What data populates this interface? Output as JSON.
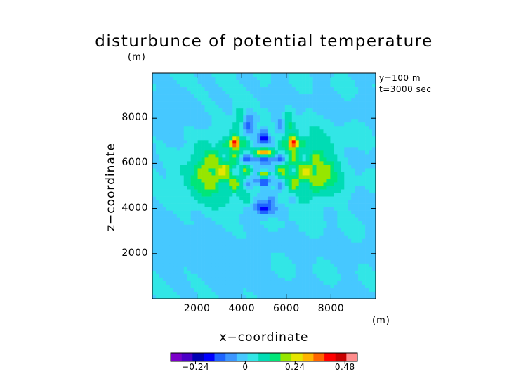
{
  "chart_data": {
    "type": "heatmap",
    "title": "disturbunce of potential temperature",
    "xlabel": "x−coordinate",
    "ylabel": "z−coordinate",
    "x_unit": "(m)",
    "z_unit": "(m)",
    "annotations": [
      "y=100  m",
      "t=3000 sec"
    ],
    "xlim": [
      0,
      10000
    ],
    "ylim": [
      0,
      10000
    ],
    "xticks": [
      "2000",
      "4000",
      "6000",
      "8000"
    ],
    "yticks": [
      "2000",
      "4000",
      "6000",
      "8000"
    ],
    "colorbar": {
      "range": [
        -0.36,
        0.54
      ],
      "ticks": [
        "−0.24",
        "0",
        "0.24",
        "0.48"
      ],
      "colors": [
        "#7b00c8",
        "#4b00c8",
        "#0000b4",
        "#0000ff",
        "#1e64ff",
        "#3c96ff",
        "#46c8ff",
        "#32e6e6",
        "#00dcb4",
        "#00e678",
        "#96e600",
        "#e6e600",
        "#ffb400",
        "#ff6400",
        "#ff0000",
        "#c80000",
        "#ff8c8c"
      ]
    }
  }
}
